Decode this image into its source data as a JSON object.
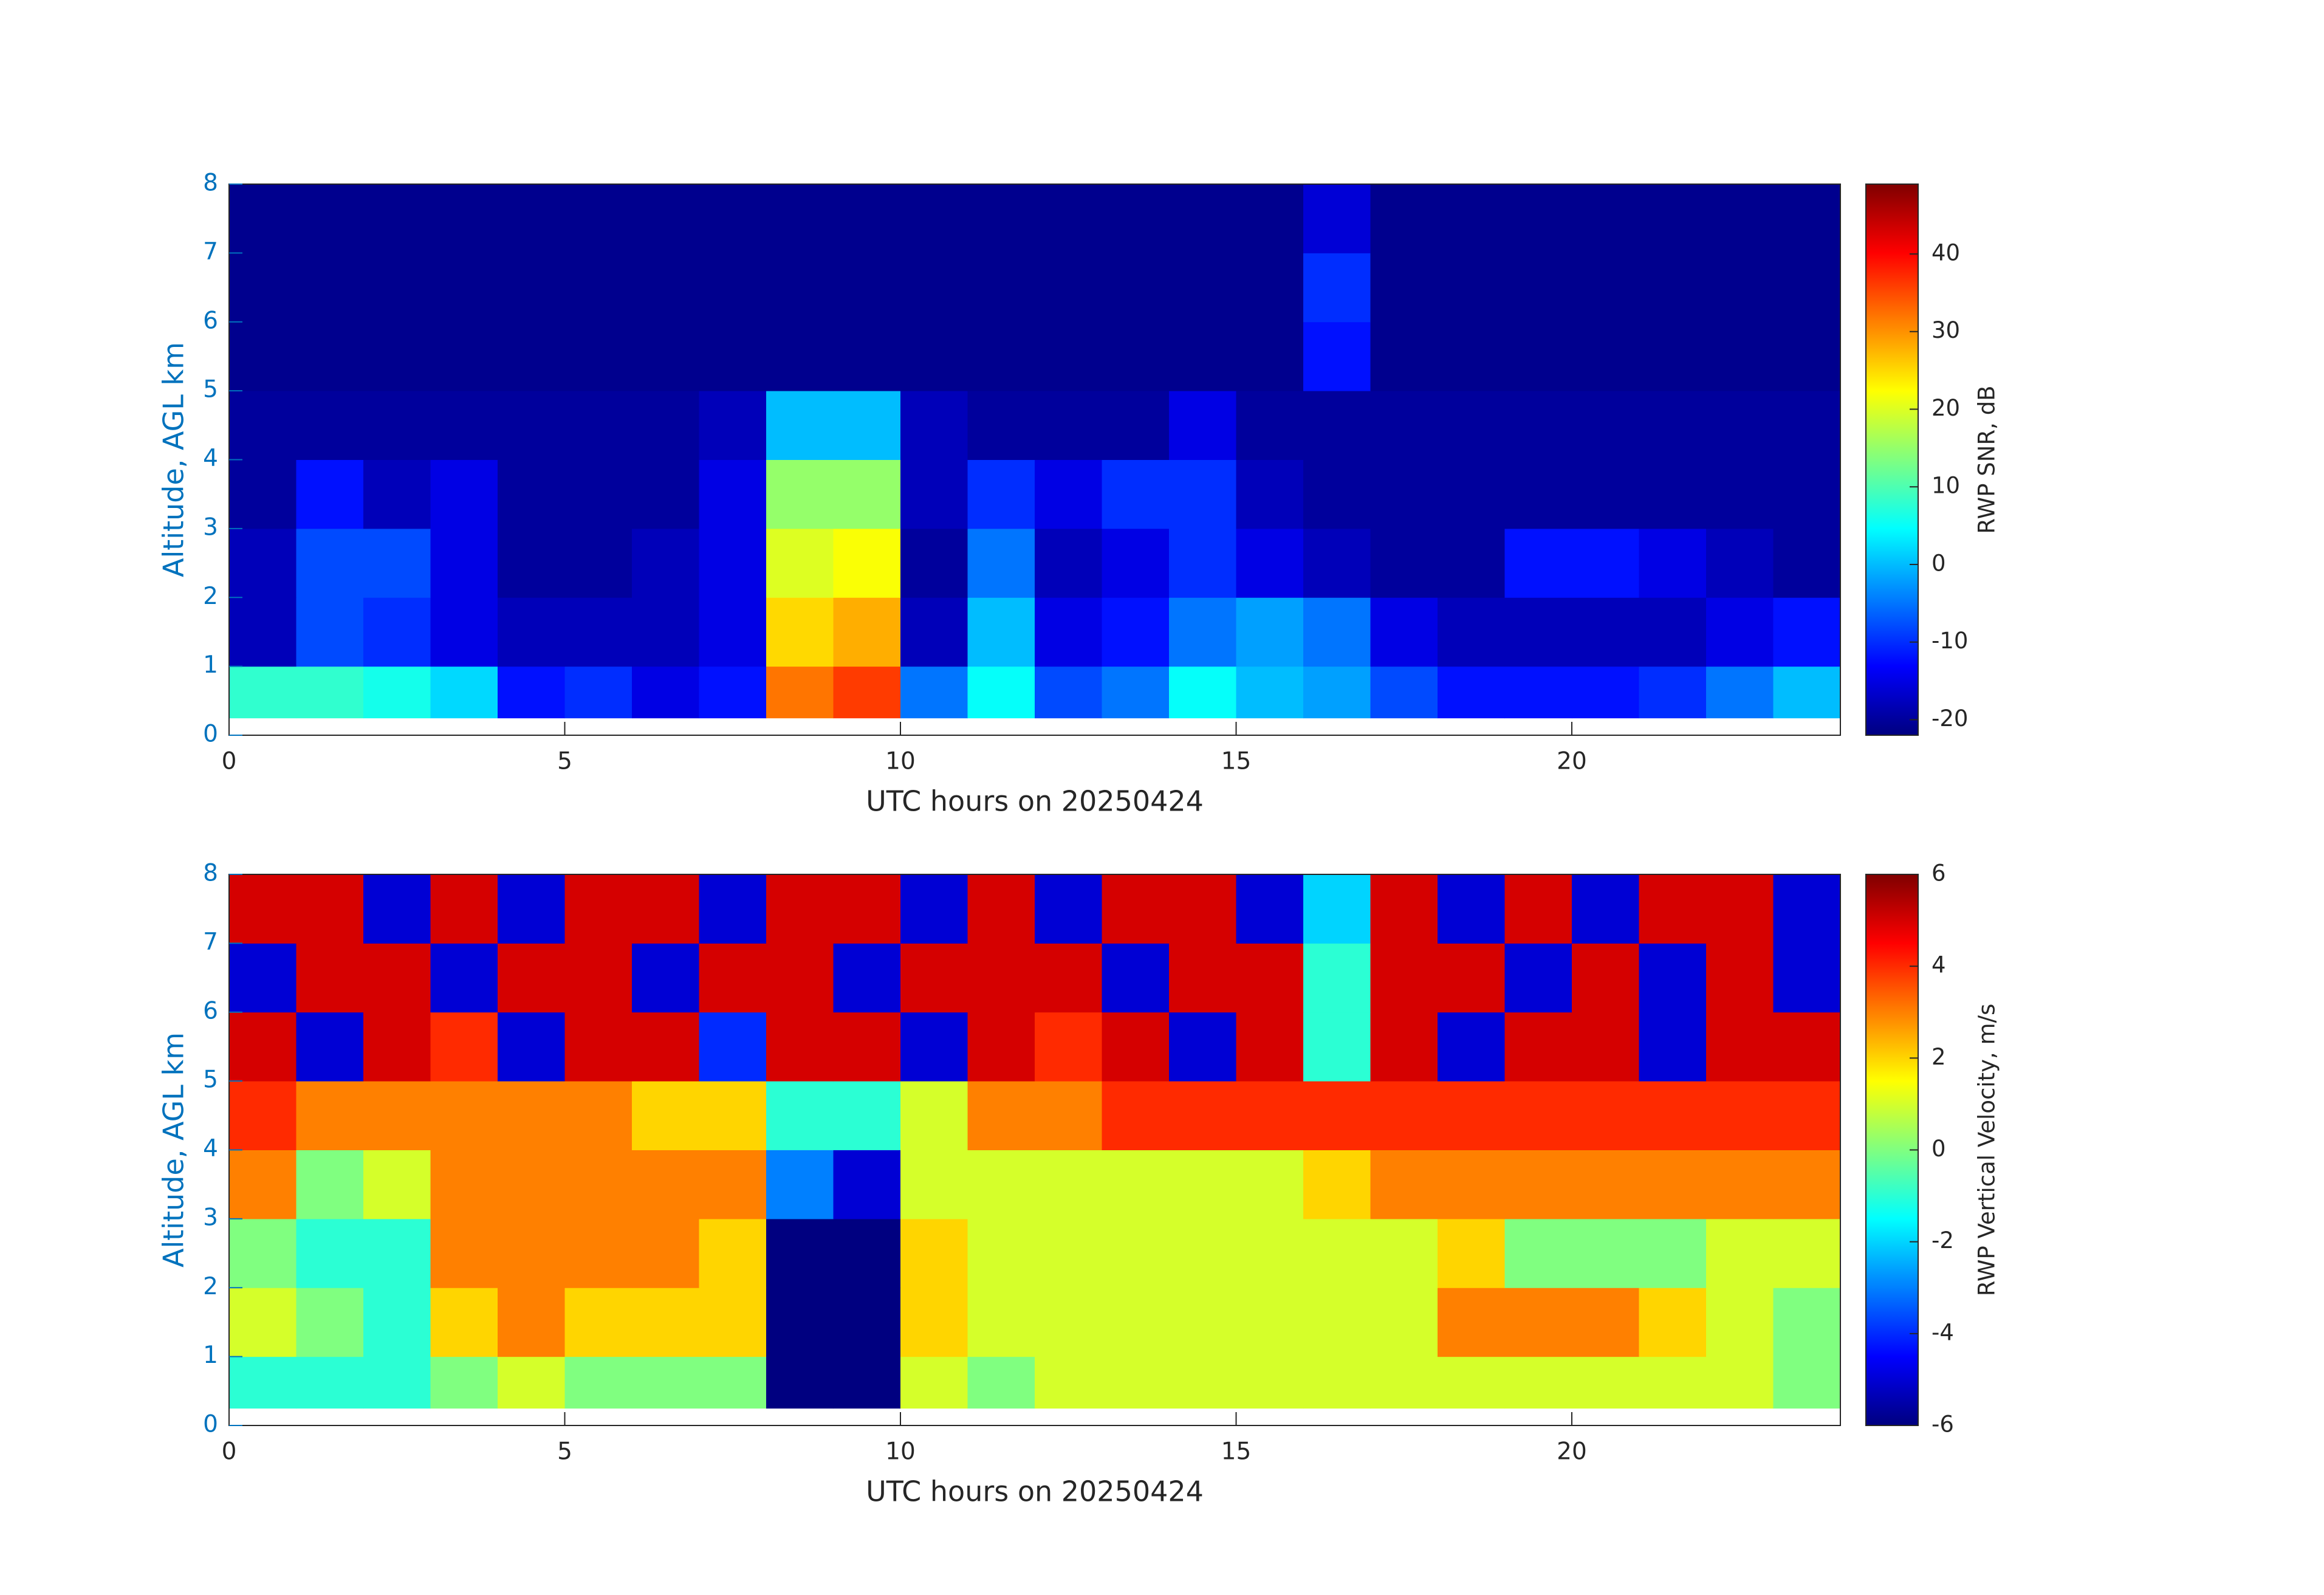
{
  "chart_data": [
    {
      "type": "heatmap",
      "colormap": "jet",
      "xlabel": "UTC hours on 20250424",
      "ylabel": "Altitude, AGL km",
      "xbins": [
        0,
        1,
        2,
        3,
        4,
        5,
        6,
        7,
        8,
        9,
        10,
        11,
        12,
        13,
        14,
        15,
        16,
        17,
        18,
        19,
        20,
        21,
        22,
        23,
        24
      ],
      "ybins": [
        0.25,
        1,
        2,
        3,
        4,
        5,
        6,
        7,
        8
      ],
      "z": [
        [
          8,
          8,
          6,
          2,
          -12,
          -10,
          -15,
          -12,
          32,
          36,
          -5,
          5,
          -8,
          -5,
          5,
          0,
          -2,
          -8,
          -12,
          -12,
          -12,
          -10,
          -5,
          0
        ],
        [
          -18,
          -8,
          -10,
          -15,
          -18,
          -18,
          -18,
          -15,
          25,
          28,
          -18,
          0,
          -15,
          -12,
          -5,
          -2,
          -5,
          -15,
          -18,
          -18,
          -18,
          -18,
          -15,
          -12
        ],
        [
          -18,
          -8,
          -8,
          -15,
          -20,
          -20,
          -18,
          -15,
          20,
          22,
          -20,
          -5,
          -18,
          -15,
          -10,
          -15,
          -18,
          -20,
          -20,
          -12,
          -12,
          -15,
          -18,
          -20
        ],
        [
          -20,
          -12,
          -18,
          -15,
          -20,
          -20,
          -20,
          -15,
          15,
          15,
          -18,
          -10,
          -15,
          -10,
          -10,
          -18,
          -20,
          -20,
          -20,
          -20,
          -20,
          -20,
          -20,
          -20
        ],
        [
          -20,
          -20,
          -20,
          -20,
          -20,
          -20,
          -20,
          -18,
          0,
          0,
          -18,
          -20,
          -20,
          -20,
          -15,
          -20,
          -20,
          -20,
          -20,
          -20,
          -20,
          -20,
          -20,
          -20
        ],
        [
          -21,
          -21,
          -21,
          -21,
          -21,
          -21,
          -21,
          -21,
          -21,
          -21,
          -21,
          -21,
          -21,
          -21,
          -21,
          -21,
          -12,
          -21,
          -21,
          -21,
          -21,
          -21,
          -21,
          -21
        ],
        [
          -21,
          -21,
          -21,
          -21,
          -21,
          -21,
          -21,
          -21,
          -21,
          -21,
          -21,
          -21,
          -21,
          -21,
          -21,
          -21,
          -10,
          -21,
          -21,
          -21,
          -21,
          -21,
          -21,
          -21
        ],
        [
          -21,
          -21,
          -21,
          -21,
          -21,
          -21,
          -21,
          -21,
          -21,
          -21,
          -21,
          -21,
          -21,
          -21,
          -21,
          -21,
          -16,
          -21,
          -21,
          -21,
          -21,
          -21,
          -21,
          -21
        ]
      ],
      "xlim": [
        0,
        24
      ],
      "xticks": [
        0,
        5,
        10,
        15,
        20
      ],
      "ylim": [
        0,
        8
      ],
      "yticks": [
        0,
        1,
        2,
        3,
        4,
        5,
        6,
        7,
        8
      ],
      "colorbar": {
        "label": "RWP SNR, dB",
        "clim": [
          -22,
          49
        ],
        "ticks": [
          -20,
          -10,
          0,
          10,
          20,
          30,
          40
        ]
      }
    },
    {
      "type": "heatmap",
      "colormap": "jet",
      "xlabel": "UTC hours on 20250424",
      "ylabel": "Altitude, AGL km",
      "xbins": [
        0,
        1,
        2,
        3,
        4,
        5,
        6,
        7,
        8,
        9,
        10,
        11,
        12,
        13,
        14,
        15,
        16,
        17,
        18,
        19,
        20,
        21,
        22,
        23,
        24
      ],
      "ybins": [
        0.25,
        1,
        2,
        3,
        4,
        5,
        6,
        7,
        8
      ],
      "z": [
        [
          -1,
          -1,
          -1,
          0,
          1,
          0,
          0,
          0,
          -6,
          -6,
          1,
          0,
          1,
          1,
          1,
          1,
          1,
          1,
          1,
          1,
          1,
          1,
          1,
          0
        ],
        [
          1,
          0,
          -1,
          2,
          3,
          2,
          2,
          2,
          -6,
          -6,
          2,
          1,
          1,
          1,
          1,
          1,
          1,
          1,
          3,
          3,
          3,
          2,
          1,
          0
        ],
        [
          0,
          -1,
          -1,
          3,
          3,
          3,
          3,
          2,
          -6,
          -6,
          2,
          1,
          1,
          1,
          1,
          1,
          1,
          1,
          2,
          0,
          0,
          0,
          1,
          1
        ],
        [
          3,
          0,
          1,
          3,
          3,
          3,
          3,
          3,
          -3,
          -5,
          1,
          1,
          1,
          1,
          1,
          1,
          2,
          3,
          3,
          3,
          3,
          3,
          3,
          3
        ],
        [
          4,
          3,
          3,
          3,
          3,
          3,
          2,
          2,
          -1,
          -1,
          1,
          3,
          3,
          4,
          4,
          4,
          4,
          4,
          4,
          4,
          4,
          4,
          4,
          4
        ],
        [
          5,
          -5,
          5,
          4,
          -5,
          5,
          5,
          -4,
          5,
          5,
          -5,
          5,
          4,
          5,
          -5,
          5,
          -1,
          5,
          -5,
          5,
          5,
          -5,
          5,
          5
        ],
        [
          -5,
          5,
          5,
          -5,
          5,
          5,
          -5,
          5,
          5,
          -5,
          5,
          5,
          5,
          -5,
          5,
          5,
          -1,
          5,
          5,
          -5,
          5,
          -5,
          5,
          -5
        ],
        [
          5,
          5,
          -5,
          5,
          -5,
          5,
          5,
          -5,
          5,
          5,
          -5,
          5,
          -5,
          5,
          5,
          -5,
          -2,
          5,
          -5,
          5,
          -5,
          5,
          5,
          -5
        ]
      ],
      "xlim": [
        0,
        24
      ],
      "xticks": [
        0,
        5,
        10,
        15,
        20
      ],
      "ylim": [
        0,
        8
      ],
      "yticks": [
        0,
        1,
        2,
        3,
        4,
        5,
        6,
        7,
        8
      ],
      "colorbar": {
        "label": "RWP Vertical Velocity, m/s",
        "clim": [
          -6,
          6
        ],
        "ticks": [
          -6,
          -4,
          -2,
          0,
          2,
          4,
          6
        ]
      }
    }
  ]
}
